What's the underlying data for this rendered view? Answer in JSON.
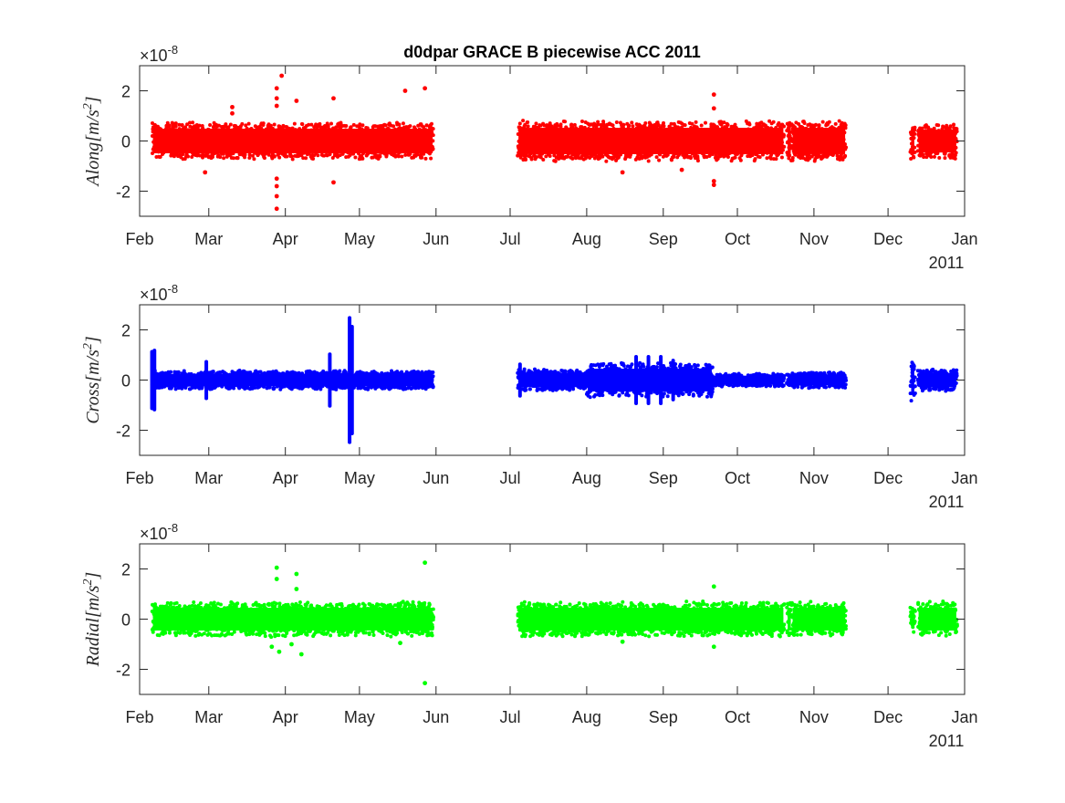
{
  "chart_data": [
    {
      "type": "scatter",
      "title": "d0dpar GRACE B piecewise ACC 2011",
      "ylabel": "Along[m/s^2]",
      "ylabel_base": "Along[m/s",
      "ylabel_sup": "2",
      "ylabel_end": "]",
      "exponent_label": "×10",
      "exponent_power": "-8",
      "year_label": "2011",
      "color": "#ff0000",
      "xlim": [
        "2011-02-01",
        "2012-01-01"
      ],
      "ylim": [
        -3,
        3
      ],
      "yticks": [
        -2,
        0,
        2
      ],
      "xtick_labels": [
        "Feb",
        "Mar",
        "Apr",
        "May",
        "Jun",
        "Jul",
        "Aug",
        "Sep",
        "Oct",
        "Nov",
        "Dec",
        "Jan"
      ],
      "segments": [
        {
          "start": "2011-02-06",
          "end": "2011-05-30",
          "amplitude": 0.7
        },
        {
          "start": "2011-07-04",
          "end": "2011-10-19",
          "amplitude": 0.75
        },
        {
          "start": "2011-10-21",
          "end": "2011-10-22",
          "amplitude": 0.75
        },
        {
          "start": "2011-10-23",
          "end": "2011-11-13",
          "amplitude": 0.75
        },
        {
          "start": "2011-12-10",
          "end": "2011-12-11",
          "amplitude": 0.7
        },
        {
          "start": "2011-12-13",
          "end": "2011-12-28",
          "amplitude": 0.65
        }
      ],
      "spikes": [],
      "outliers": [
        {
          "date": "2011-02-27",
          "value": -1.25
        },
        {
          "date": "2011-03-10",
          "value": 1.35
        },
        {
          "date": "2011-03-10",
          "value": 1.1
        },
        {
          "date": "2011-03-28",
          "value": 2.1
        },
        {
          "date": "2011-03-28",
          "value": 1.7
        },
        {
          "date": "2011-03-28",
          "value": 1.4
        },
        {
          "date": "2011-03-28",
          "value": -1.5
        },
        {
          "date": "2011-03-28",
          "value": -1.8
        },
        {
          "date": "2011-03-28",
          "value": -2.2
        },
        {
          "date": "2011-03-28",
          "value": -2.7
        },
        {
          "date": "2011-03-30",
          "value": 2.6
        },
        {
          "date": "2011-04-05",
          "value": 1.6
        },
        {
          "date": "2011-04-20",
          "value": 1.7
        },
        {
          "date": "2011-04-20",
          "value": -1.65
        },
        {
          "date": "2011-05-19",
          "value": 2.0
        },
        {
          "date": "2011-05-27",
          "value": 2.1
        },
        {
          "date": "2011-09-21",
          "value": 1.85
        },
        {
          "date": "2011-09-21",
          "value": 1.3
        },
        {
          "date": "2011-09-21",
          "value": -1.6
        },
        {
          "date": "2011-09-21",
          "value": -1.75
        },
        {
          "date": "2011-08-15",
          "value": -1.25
        },
        {
          "date": "2011-09-08",
          "value": -1.15
        }
      ]
    },
    {
      "type": "scatter",
      "ylabel": "Cross[m/s^2]",
      "ylabel_base": "Cross[m/s",
      "ylabel_sup": "2",
      "ylabel_end": "]",
      "exponent_label": "×10",
      "exponent_power": "-8",
      "year_label": "2011",
      "color": "#0000ff",
      "xlim": [
        "2011-02-01",
        "2012-01-01"
      ],
      "ylim": [
        -3,
        3
      ],
      "yticks": [
        -2,
        0,
        2
      ],
      "xtick_labels": [
        "Feb",
        "Mar",
        "Apr",
        "May",
        "Jun",
        "Jul",
        "Aug",
        "Sep",
        "Oct",
        "Nov",
        "Dec",
        "Jan"
      ],
      "segments": [
        {
          "start": "2011-02-06",
          "end": "2011-05-30",
          "amplitude": 0.35
        },
        {
          "start": "2011-07-04",
          "end": "2011-08-01",
          "amplitude": 0.4
        },
        {
          "start": "2011-08-01",
          "end": "2011-09-20",
          "amplitude": 0.65
        },
        {
          "start": "2011-09-20",
          "end": "2011-10-19",
          "amplitude": 0.25
        },
        {
          "start": "2011-10-21",
          "end": "2011-10-22",
          "amplitude": 0.25
        },
        {
          "start": "2011-10-23",
          "end": "2011-11-13",
          "amplitude": 0.3
        },
        {
          "start": "2011-12-10",
          "end": "2011-12-11",
          "amplitude": 0.85
        },
        {
          "start": "2011-12-13",
          "end": "2011-12-28",
          "amplitude": 0.4
        }
      ],
      "spikes": [
        {
          "date": "2011-02-06",
          "value": 1.2
        },
        {
          "date": "2011-02-07",
          "value": 1.25
        },
        {
          "date": "2011-02-28",
          "value": 0.8
        },
        {
          "date": "2011-04-19",
          "value": 1.1
        },
        {
          "date": "2011-04-27",
          "value": 2.55
        },
        {
          "date": "2011-04-28",
          "value": 2.2
        },
        {
          "date": "2011-07-05",
          "value": 0.7
        },
        {
          "date": "2011-08-21",
          "value": 1.0
        },
        {
          "date": "2011-08-26",
          "value": 1.0
        },
        {
          "date": "2011-08-31",
          "value": 1.0
        },
        {
          "date": "2011-09-05",
          "value": 0.85
        }
      ],
      "outliers": []
    },
    {
      "type": "scatter",
      "ylabel": "Radial[m/s^2]",
      "ylabel_base": "Radial[m/s",
      "ylabel_sup": "2",
      "ylabel_end": "]",
      "exponent_label": "×10",
      "exponent_power": "-8",
      "year_label": "2011",
      "color": "#00ff00",
      "xlim": [
        "2011-02-01",
        "2012-01-01"
      ],
      "ylim": [
        -3,
        3
      ],
      "yticks": [
        -2,
        0,
        2
      ],
      "xtick_labels": [
        "Feb",
        "Mar",
        "Apr",
        "May",
        "Jun",
        "Jul",
        "Aug",
        "Sep",
        "Oct",
        "Nov",
        "Dec",
        "Jan"
      ],
      "segments": [
        {
          "start": "2011-02-06",
          "end": "2011-05-30",
          "amplitude": 0.65
        },
        {
          "start": "2011-07-04",
          "end": "2011-10-19",
          "amplitude": 0.65
        },
        {
          "start": "2011-10-21",
          "end": "2011-10-22",
          "amplitude": 0.65
        },
        {
          "start": "2011-10-23",
          "end": "2011-11-13",
          "amplitude": 0.65
        },
        {
          "start": "2011-12-10",
          "end": "2011-12-11",
          "amplitude": 0.5
        },
        {
          "start": "2011-12-13",
          "end": "2011-12-28",
          "amplitude": 0.65
        }
      ],
      "spikes": [],
      "outliers": [
        {
          "date": "2011-03-28",
          "value": 2.05
        },
        {
          "date": "2011-03-28",
          "value": 1.6
        },
        {
          "date": "2011-03-26",
          "value": -1.1
        },
        {
          "date": "2011-03-29",
          "value": -1.3
        },
        {
          "date": "2011-04-05",
          "value": 1.8
        },
        {
          "date": "2011-04-05",
          "value": 1.2
        },
        {
          "date": "2011-04-07",
          "value": -1.4
        },
        {
          "date": "2011-04-03",
          "value": -1.0
        },
        {
          "date": "2011-05-17",
          "value": -0.95
        },
        {
          "date": "2011-05-27",
          "value": 2.25
        },
        {
          "date": "2011-05-27",
          "value": -2.55
        },
        {
          "date": "2011-08-15",
          "value": -0.9
        },
        {
          "date": "2011-09-21",
          "value": 1.3
        },
        {
          "date": "2011-09-21",
          "value": -1.1
        }
      ]
    }
  ]
}
